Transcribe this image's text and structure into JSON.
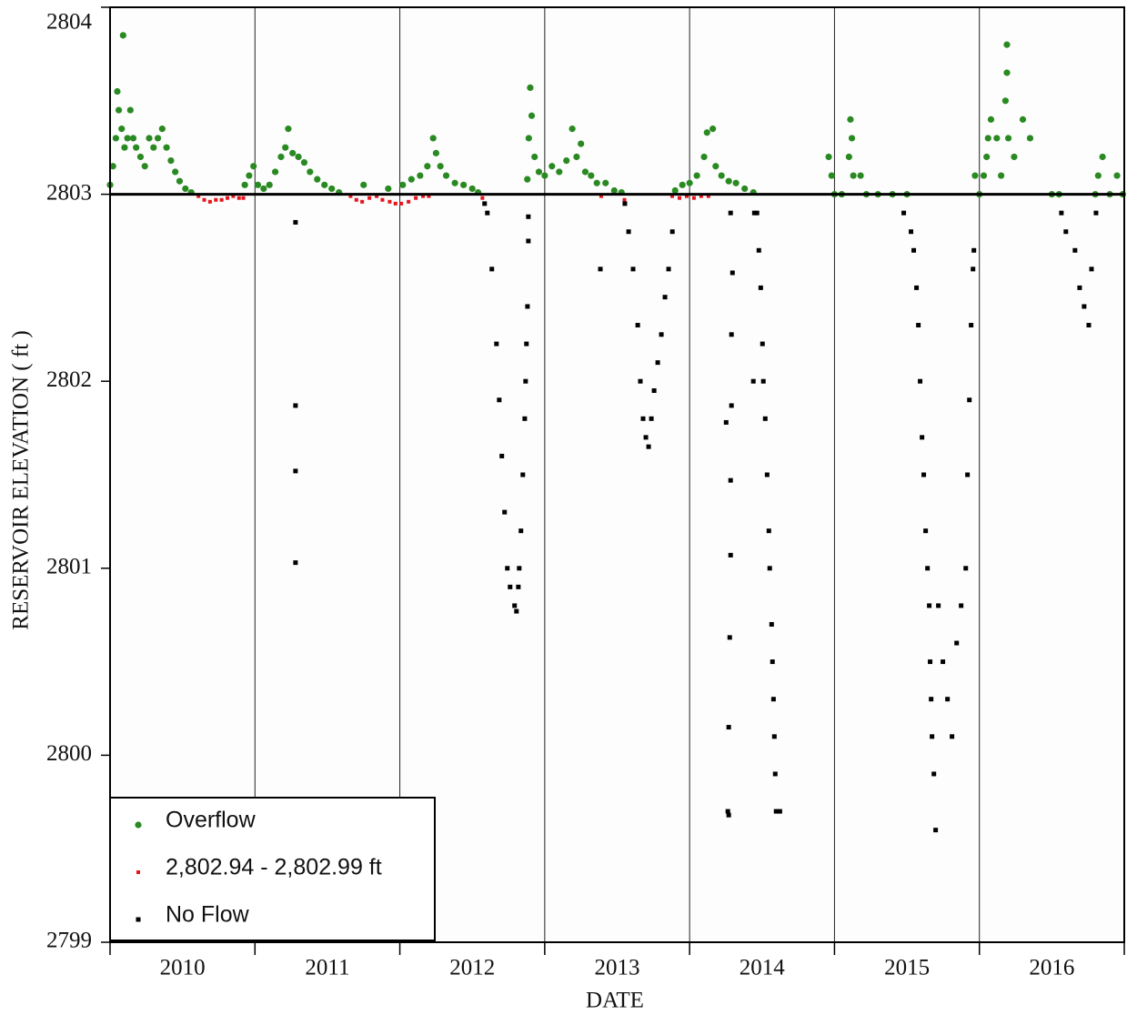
{
  "chart_data": {
    "type": "scatter",
    "xlabel": "DATE",
    "ylabel": "RESERVOIR  ELEVATION ( ft )",
    "xlim": [
      2010,
      2017
    ],
    "ylim": [
      2799,
      2804
    ],
    "yticks": [
      2799,
      2800,
      2801,
      2802,
      2803,
      2804
    ],
    "xticks": [
      2010,
      2011,
      2012,
      2013,
      2014,
      2015,
      2016,
      2017
    ],
    "year_labels": [
      {
        "value": 2010.5,
        "label": "2010"
      },
      {
        "value": 2011.5,
        "label": "2011"
      },
      {
        "value": 2012.5,
        "label": "2012"
      },
      {
        "value": 2013.5,
        "label": "2013"
      },
      {
        "value": 2014.5,
        "label": "2014"
      },
      {
        "value": 2015.5,
        "label": "2015"
      },
      {
        "value": 2016.5,
        "label": "2016"
      }
    ],
    "xgrid": [
      2011,
      2012,
      2013,
      2014,
      2015,
      2016
    ],
    "hline": 2803,
    "legend": "lower left",
    "series": [
      {
        "name": "Overflow",
        "color": "#2a8a22",
        "marker": "circle",
        "x": [
          2010.0,
          2010.02,
          2010.04,
          2010.05,
          2010.06,
          2010.08,
          2010.09,
          2010.1,
          2010.12,
          2010.14,
          2010.16,
          2010.18,
          2010.21,
          2010.24,
          2010.27,
          2010.3,
          2010.33,
          2010.36,
          2010.39,
          2010.42,
          2010.45,
          2010.48,
          2010.52,
          2010.56,
          2010.93,
          2010.96,
          2010.99,
          2011.02,
          2011.06,
          2011.1,
          2011.14,
          2011.18,
          2011.21,
          2011.23,
          2011.26,
          2011.3,
          2011.34,
          2011.38,
          2011.43,
          2011.48,
          2011.53,
          2011.58,
          2011.75,
          2011.92,
          2012.02,
          2012.08,
          2012.14,
          2012.19,
          2012.23,
          2012.25,
          2012.28,
          2012.32,
          2012.38,
          2012.44,
          2012.5,
          2012.54,
          2012.88,
          2012.89,
          2012.9,
          2012.91,
          2012.93,
          2012.96,
          2013.0,
          2013.05,
          2013.1,
          2013.15,
          2013.19,
          2013.22,
          2013.25,
          2013.28,
          2013.32,
          2013.36,
          2013.42,
          2013.48,
          2013.53,
          2013.9,
          2013.95,
          2014.0,
          2014.05,
          2014.1,
          2014.12,
          2014.16,
          2014.18,
          2014.22,
          2014.27,
          2014.32,
          2014.38,
          2014.44,
          2014.96,
          2014.98,
          2015.0,
          2015.05,
          2015.1,
          2015.11,
          2015.12,
          2015.13,
          2015.18,
          2015.22,
          2015.3,
          2015.4,
          2015.5,
          2015.97,
          2016.0,
          2016.03,
          2016.05,
          2016.06,
          2016.08,
          2016.12,
          2016.15,
          2016.18,
          2016.19,
          2016.19,
          2016.2,
          2016.24,
          2016.3,
          2016.35,
          2016.5,
          2016.55,
          2016.8,
          2016.82,
          2016.85,
          2016.9,
          2016.95,
          2016.99
        ],
        "values": [
          2803.05,
          2803.15,
          2803.3,
          2803.55,
          2803.45,
          2803.35,
          2803.85,
          2803.25,
          2803.3,
          2803.45,
          2803.3,
          2803.25,
          2803.2,
          2803.15,
          2803.3,
          2803.25,
          2803.3,
          2803.35,
          2803.25,
          2803.18,
          2803.12,
          2803.07,
          2803.03,
          2803.01,
          2803.05,
          2803.1,
          2803.15,
          2803.05,
          2803.03,
          2803.05,
          2803.12,
          2803.2,
          2803.25,
          2803.35,
          2803.22,
          2803.2,
          2803.17,
          2803.12,
          2803.08,
          2803.05,
          2803.03,
          2803.01,
          2803.05,
          2803.03,
          2803.05,
          2803.08,
          2803.1,
          2803.15,
          2803.3,
          2803.22,
          2803.15,
          2803.1,
          2803.06,
          2803.05,
          2803.03,
          2803.01,
          2803.08,
          2803.3,
          2803.57,
          2803.42,
          2803.2,
          2803.12,
          2803.1,
          2803.15,
          2803.12,
          2803.18,
          2803.35,
          2803.2,
          2803.27,
          2803.12,
          2803.1,
          2803.06,
          2803.06,
          2803.02,
          2803.01,
          2803.02,
          2803.05,
          2803.06,
          2803.1,
          2803.2,
          2803.33,
          2803.35,
          2803.15,
          2803.1,
          2803.07,
          2803.06,
          2803.03,
          2803.01,
          2803.2,
          2803.1,
          2803.0,
          2803.0,
          2803.2,
          2803.4,
          2803.3,
          2803.1,
          2803.1,
          2803.0,
          2803.0,
          2803.0,
          2803.0,
          2803.1,
          2803.0,
          2803.1,
          2803.2,
          2803.3,
          2803.4,
          2803.3,
          2803.1,
          2803.5,
          2803.65,
          2803.8,
          2803.3,
          2803.2,
          2803.4,
          2803.3,
          2803.0,
          2803.0,
          2803.0,
          2803.1,
          2803.2,
          2803.0,
          2803.1,
          2803.0
        ]
      },
      {
        "name": "2,802.94 - 2,802.99 ft",
        "color": "#e8141e",
        "marker": "small-square",
        "x": [
          2010.61,
          2010.65,
          2010.69,
          2010.73,
          2010.77,
          2010.81,
          2010.85,
          2010.89,
          2010.92,
          2011.66,
          2011.7,
          2011.74,
          2011.79,
          2011.84,
          2011.88,
          2011.93,
          2011.97,
          2012.01,
          2012.06,
          2012.11,
          2012.16,
          2012.2,
          2012.57,
          2013.39,
          2013.55,
          2013.88,
          2013.93,
          2013.98,
          2014.03,
          2014.08,
          2014.13
        ],
        "values": [
          2802.99,
          2802.97,
          2802.96,
          2802.97,
          2802.97,
          2802.98,
          2802.99,
          2802.98,
          2802.98,
          2802.99,
          2802.97,
          2802.96,
          2802.98,
          2802.99,
          2802.97,
          2802.96,
          2802.95,
          2802.95,
          2802.96,
          2802.98,
          2802.99,
          2802.99,
          2802.98,
          2802.99,
          2802.97,
          2802.99,
          2802.98,
          2802.99,
          2802.98,
          2802.99,
          2802.99
        ]
      },
      {
        "name": "No Flow",
        "color": "#000000",
        "marker": "square",
        "x": [
          2011.28,
          2011.28,
          2011.28,
          2011.28,
          2012.585,
          2012.604,
          2012.635,
          2012.667,
          2012.686,
          2012.704,
          2012.723,
          2012.742,
          2012.761,
          2012.792,
          2012.805,
          2012.818,
          2012.824,
          2012.836,
          2012.849,
          2012.862,
          2012.868,
          2012.874,
          2012.881,
          2012.887,
          2012.887,
          2013.384,
          2013.553,
          2013.579,
          2013.61,
          2013.642,
          2013.66,
          2013.679,
          2013.698,
          2013.717,
          2013.736,
          2013.755,
          2013.78,
          2013.805,
          2013.83,
          2013.855,
          2013.881,
          2014.252,
          2014.283,
          2014.296,
          2014.289,
          2014.289,
          2014.283,
          2014.283,
          2014.277,
          2014.27,
          2014.264,
          2014.27,
          2014.44,
          2014.447,
          2014.465,
          2014.478,
          2014.491,
          2014.503,
          2014.509,
          2014.522,
          2014.535,
          2014.547,
          2014.553,
          2014.566,
          2014.572,
          2014.579,
          2014.585,
          2014.591,
          2014.597,
          2014.623,
          2015.478,
          2015.528,
          2015.547,
          2015.566,
          2015.579,
          2015.591,
          2015.604,
          2015.616,
          2015.629,
          2015.642,
          2015.654,
          2015.66,
          2015.667,
          2015.673,
          2015.686,
          2015.698,
          2015.717,
          2015.748,
          2015.78,
          2015.811,
          2015.843,
          2015.874,
          2015.906,
          2015.918,
          2015.931,
          2015.943,
          2015.956,
          2015.962,
          2016.566,
          2016.597,
          2016.66,
          2016.692,
          2016.723,
          2016.755,
          2016.774,
          2016.805
        ],
        "values": [
          2802.85,
          2801.87,
          2801.52,
          2801.03,
          2802.95,
          2802.9,
          2802.6,
          2802.2,
          2801.9,
          2801.6,
          2801.3,
          2801.0,
          2800.9,
          2800.8,
          2800.77,
          2800.9,
          2801.0,
          2801.2,
          2801.5,
          2801.8,
          2802.0,
          2802.2,
          2802.4,
          2802.75,
          2802.88,
          2802.6,
          2802.95,
          2802.8,
          2802.6,
          2802.3,
          2802.0,
          2801.8,
          2801.7,
          2801.65,
          2801.8,
          2801.95,
          2802.1,
          2802.25,
          2802.45,
          2802.6,
          2802.8,
          2801.78,
          2802.9,
          2802.58,
          2802.25,
          2801.87,
          2801.47,
          2801.07,
          2800.63,
          2800.15,
          2799.7,
          2799.68,
          2802.0,
          2802.9,
          2802.9,
          2802.7,
          2802.5,
          2802.2,
          2802.0,
          2801.8,
          2801.5,
          2801.2,
          2801.0,
          2800.7,
          2800.5,
          2800.3,
          2800.1,
          2799.9,
          2799.7,
          2799.7,
          2802.9,
          2802.8,
          2802.7,
          2802.5,
          2802.3,
          2802.0,
          2801.7,
          2801.5,
          2801.2,
          2801.0,
          2800.8,
          2800.5,
          2800.3,
          2800.1,
          2799.9,
          2799.6,
          2800.8,
          2800.5,
          2800.3,
          2800.1,
          2800.6,
          2800.8,
          2801.0,
          2801.5,
          2801.9,
          2802.3,
          2802.6,
          2802.7,
          2802.9,
          2802.8,
          2802.7,
          2802.5,
          2802.4,
          2802.3,
          2802.6,
          2802.9
        ]
      }
    ]
  }
}
